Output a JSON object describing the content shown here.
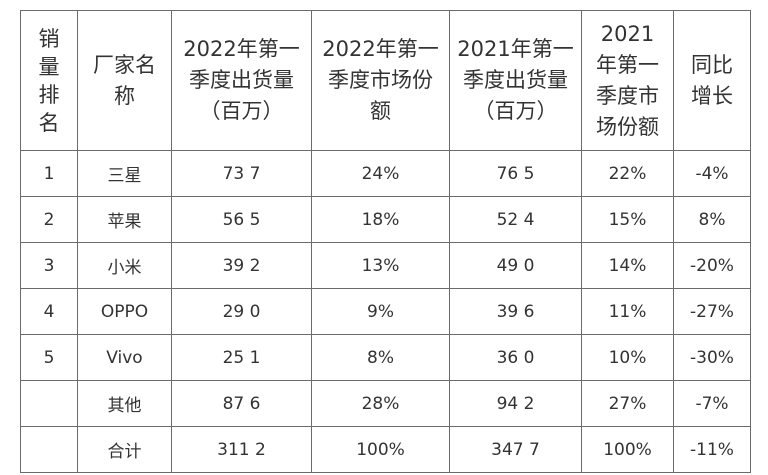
{
  "table": {
    "headers": {
      "rank": "销量排名",
      "vendor": "厂家名称",
      "q1_2022_shipments": "2022年第一季度出货量（百万）",
      "q1_2022_share": "2022年第一季度市场份额",
      "q1_2021_shipments": "2021年第一季度出货量（百万）",
      "q1_2021_share": "2021年第一季度市场份额",
      "yoy_growth": "同比增长"
    },
    "rows": [
      {
        "rank": "1",
        "vendor": "三星",
        "q1_2022_shipments": "73 7",
        "q1_2022_share": "24%",
        "q1_2021_shipments": "76 5",
        "q1_2021_share": "22%",
        "yoy_growth": "-4%"
      },
      {
        "rank": "2",
        "vendor": "苹果",
        "q1_2022_shipments": "56 5",
        "q1_2022_share": "18%",
        "q1_2021_shipments": "52 4",
        "q1_2021_share": "15%",
        "yoy_growth": "8%"
      },
      {
        "rank": "3",
        "vendor": "小米",
        "q1_2022_shipments": "39 2",
        "q1_2022_share": "13%",
        "q1_2021_shipments": "49 0",
        "q1_2021_share": "14%",
        "yoy_growth": "-20%"
      },
      {
        "rank": "4",
        "vendor": "OPPO",
        "q1_2022_shipments": "29 0",
        "q1_2022_share": "9%",
        "q1_2021_shipments": "39 6",
        "q1_2021_share": "11%",
        "yoy_growth": "-27%"
      },
      {
        "rank": "5",
        "vendor": "Vivo",
        "q1_2022_shipments": "25 1",
        "q1_2022_share": "8%",
        "q1_2021_shipments": "36 0",
        "q1_2021_share": "10%",
        "yoy_growth": "-30%"
      },
      {
        "rank": "",
        "vendor": "其他",
        "q1_2022_shipments": "87 6",
        "q1_2022_share": "28%",
        "q1_2021_shipments": "94 2",
        "q1_2021_share": "27%",
        "yoy_growth": "-7%"
      },
      {
        "rank": "",
        "vendor": "合计",
        "q1_2022_shipments": "311 2",
        "q1_2022_share": "100%",
        "q1_2021_shipments": "347 7",
        "q1_2021_share": "100%",
        "yoy_growth": "-11%"
      }
    ]
  }
}
